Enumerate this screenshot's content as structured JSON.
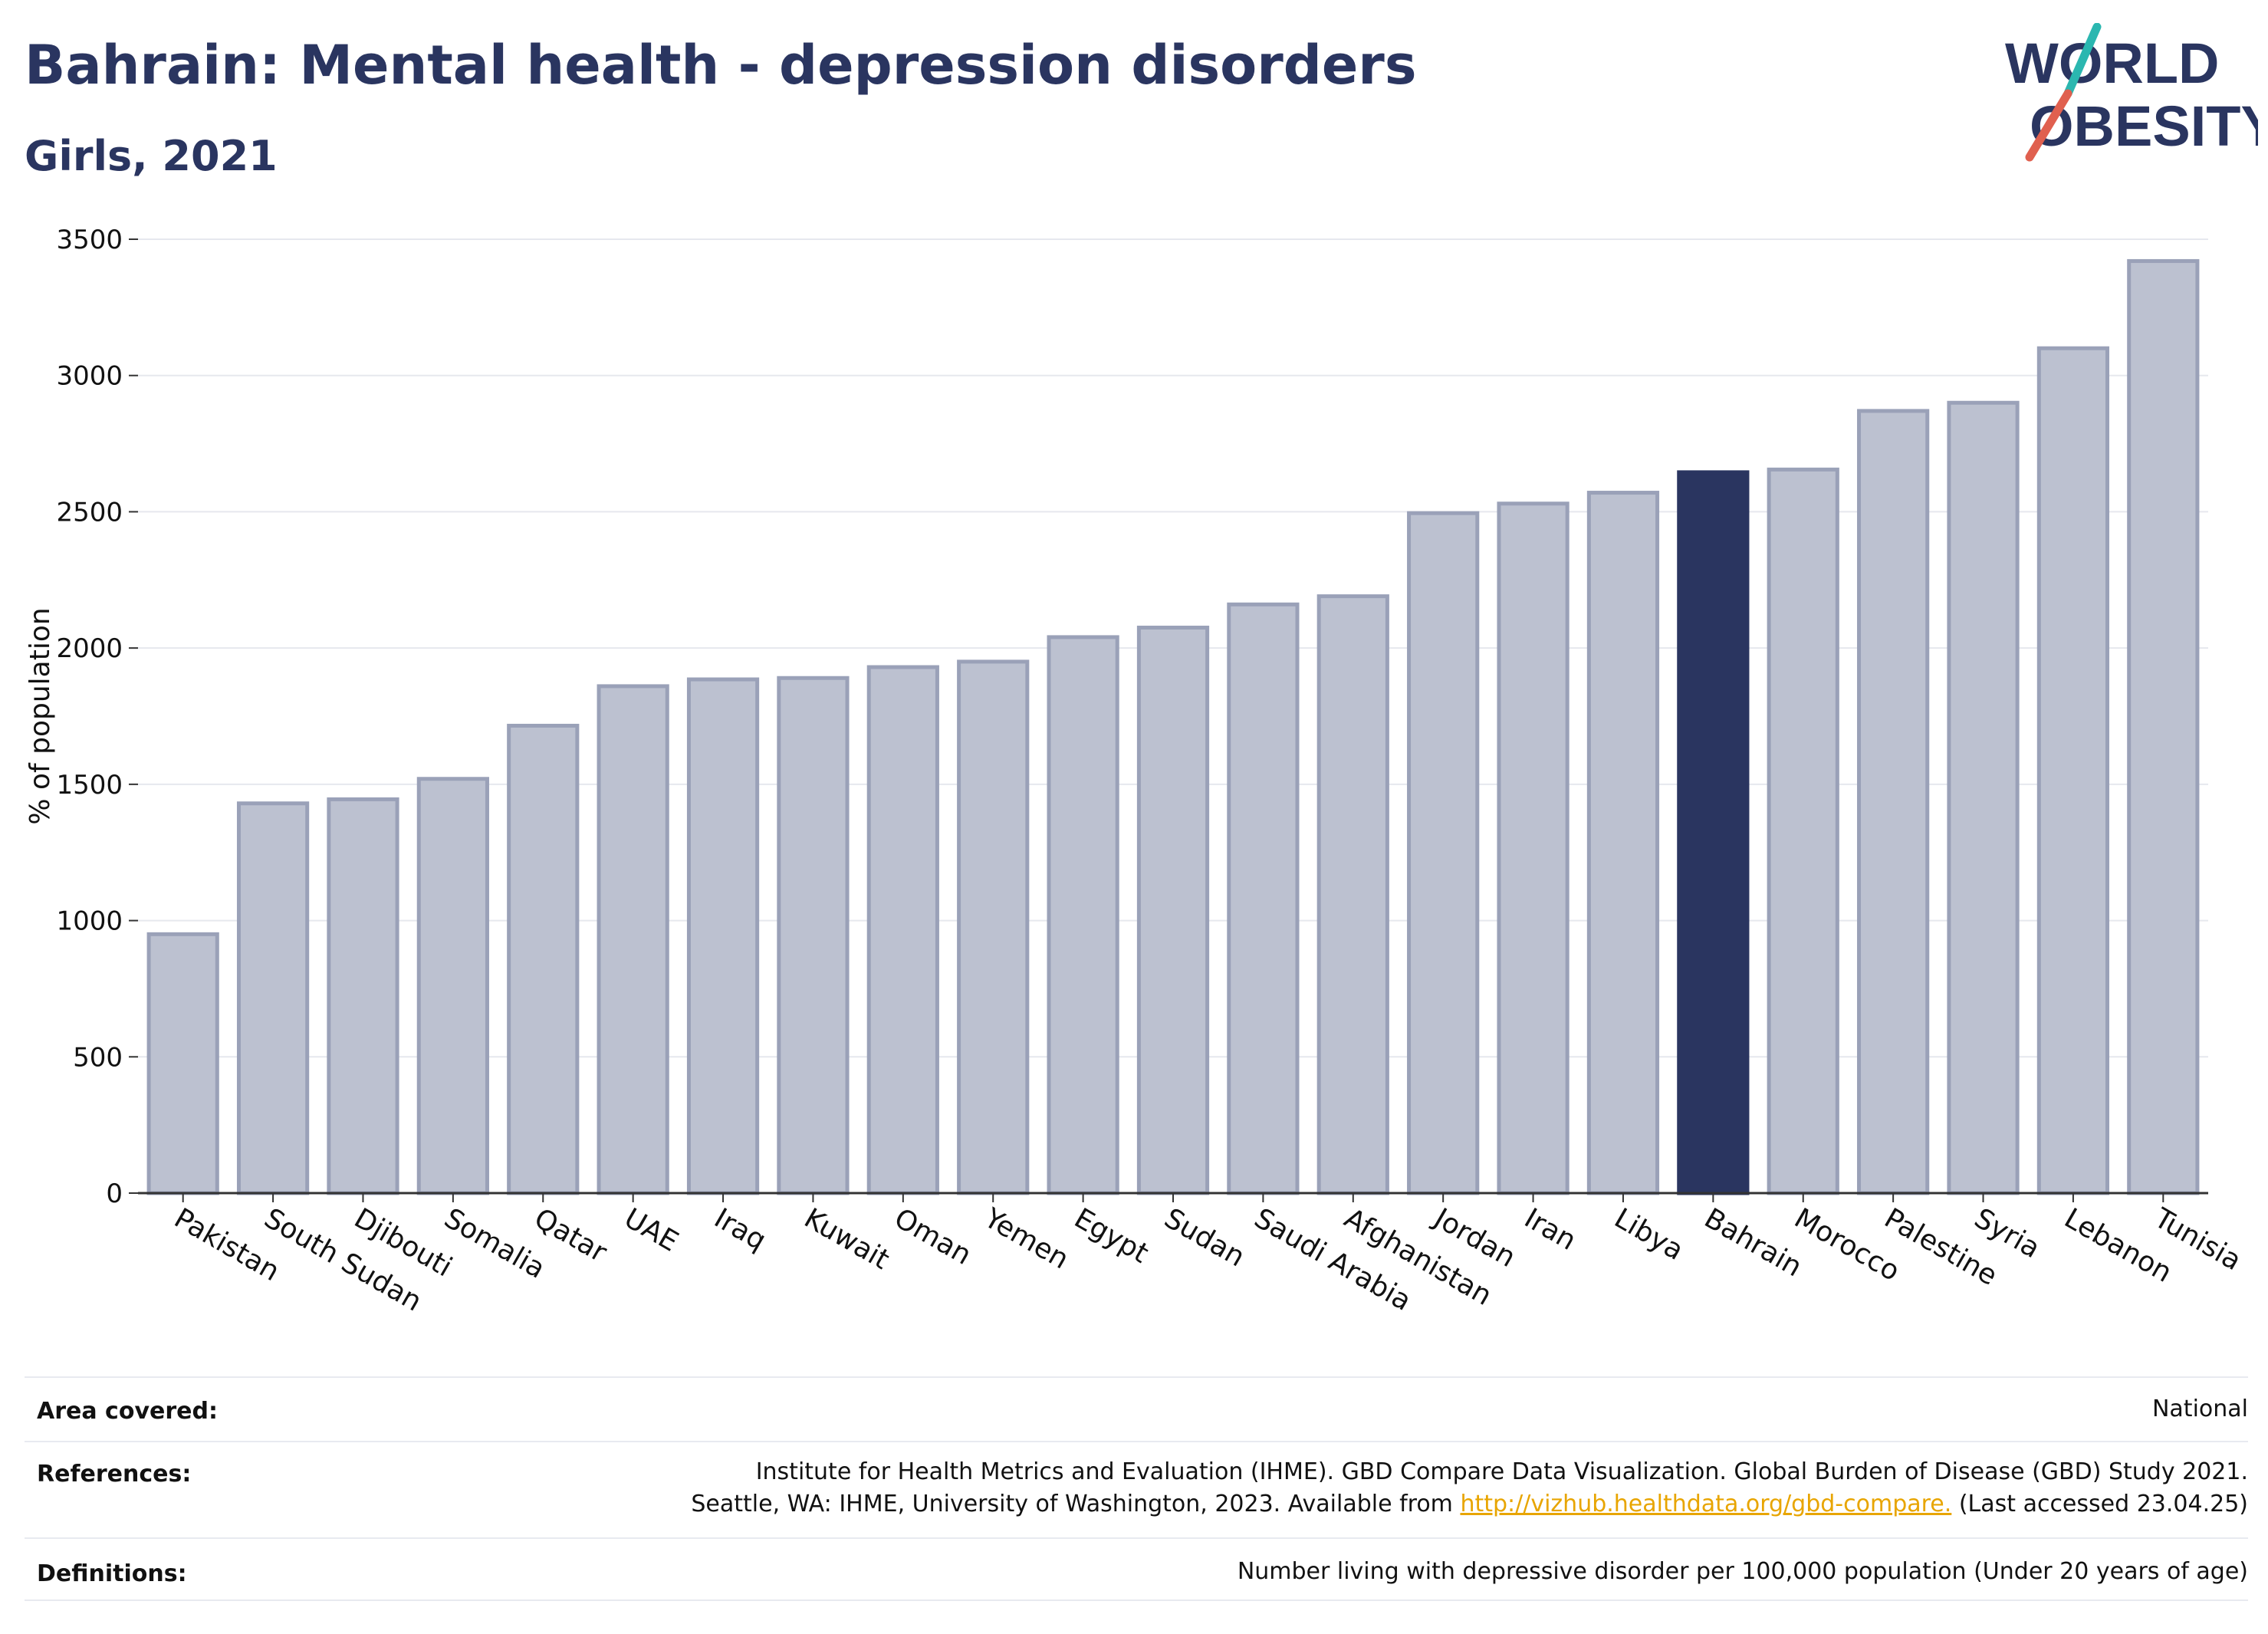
{
  "header": {
    "title": "Bahrain: Mental health - depression disorders",
    "subtitle": "Girls, 2021"
  },
  "logo": {
    "line1": "WORLD",
    "line2": "OBESITY",
    "accent_teal": "#2bb7b0",
    "accent_red": "#e0604f"
  },
  "colors": {
    "bar": "#bcc1d0",
    "bar_border": "#9aa1b8",
    "highlight": "#2a3560",
    "grid": "#e6e8ee",
    "axis": "#333333"
  },
  "chart_data": {
    "type": "bar",
    "title": "Bahrain: Mental health - depression disorders",
    "subtitle": "Girls, 2021",
    "xlabel": "",
    "ylabel": "% of population",
    "ylim": [
      0,
      3500
    ],
    "yticks": [
      0,
      500,
      1000,
      1500,
      2000,
      2500,
      3000,
      3500
    ],
    "grid": true,
    "highlight": "Bahrain",
    "categories": [
      "Pakistan",
      "South Sudan",
      "Djibouti",
      "Somalia",
      "Qatar",
      "UAE",
      "Iraq",
      "Kuwait",
      "Oman",
      "Yemen",
      "Egypt",
      "Sudan",
      "Saudi Arabia",
      "Afghanistan",
      "Jordan",
      "Iran",
      "Libya",
      "Bahrain",
      "Morocco",
      "Palestine",
      "Syria",
      "Lebanon",
      "Tunisia"
    ],
    "values": [
      950,
      1430,
      1445,
      1520,
      1715,
      1860,
      1885,
      1890,
      1930,
      1950,
      2040,
      2075,
      2160,
      2190,
      2495,
      2530,
      2570,
      2645,
      2655,
      2870,
      2900,
      3100,
      3420
    ]
  },
  "info": {
    "area_label": "Area covered:",
    "area_value": "National",
    "references_label": "References:",
    "references_line1": "Institute for Health Metrics and Evaluation (IHME). GBD Compare Data Visualization. Global Burden of Disease (GBD) Study 2021.",
    "references_line2_pre": "Seattle, WA: IHME, University of Washington, 2023. Available from ",
    "references_link": "http://vizhub.healthdata.org/gbd-compare.",
    "references_line2_post": " (Last accessed 23.04.25)",
    "definitions_label": "Definitions:",
    "definitions_value": "Number living with depressive disorder per 100,000 population (Under 20 years of age)"
  }
}
